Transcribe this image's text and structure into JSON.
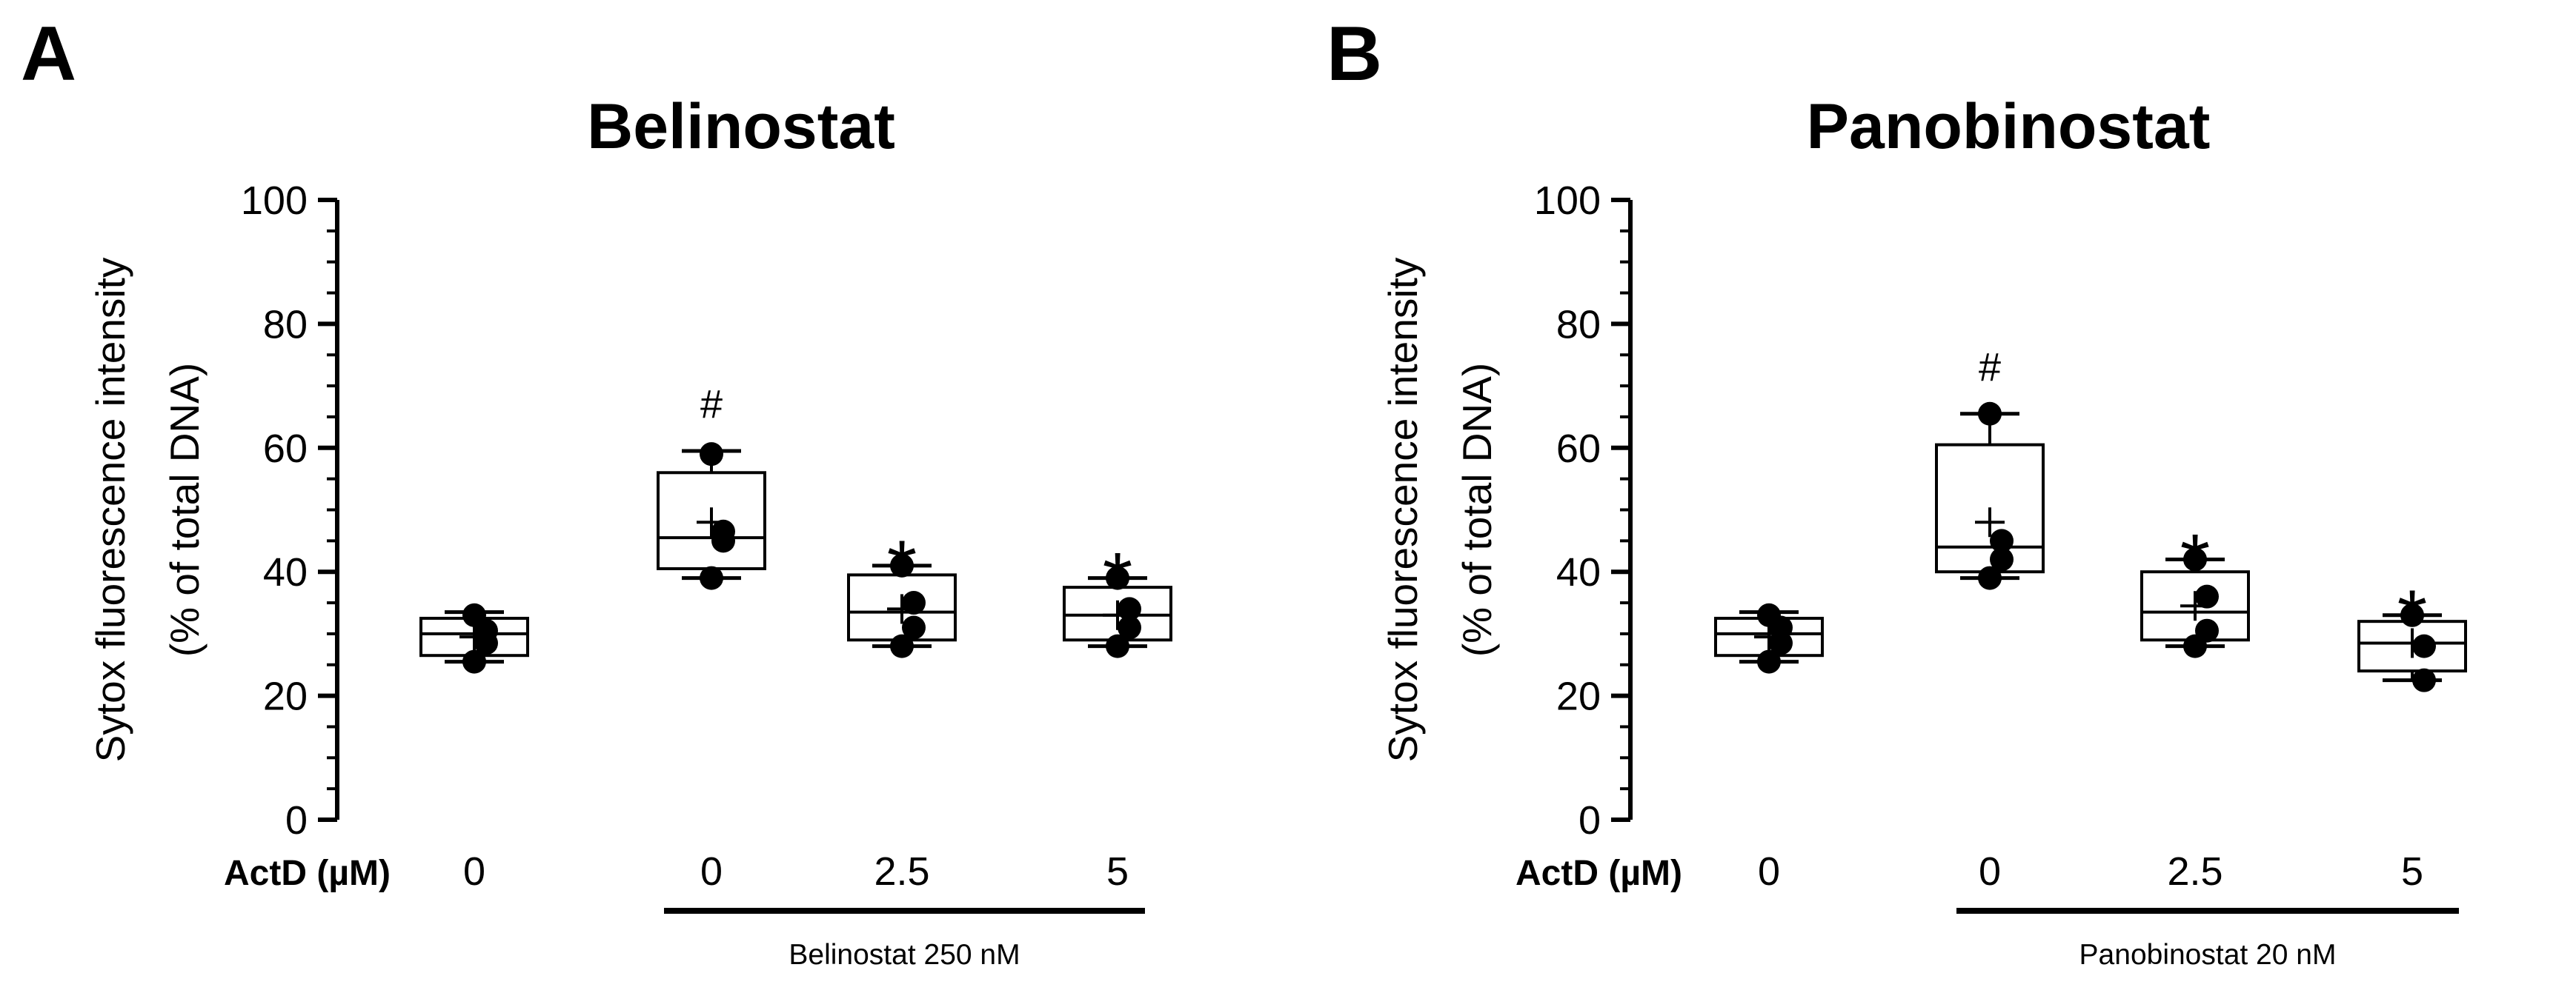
{
  "figure": {
    "row_label": "ActD (µM)",
    "y_label_line1": "Sytox fluorescence intensity",
    "y_label_line2": "(% of total DNA)"
  },
  "chart_data": [
    {
      "panel": "A",
      "type": "box",
      "title": "Belinostat",
      "ylabel": "Sytox fluorescence intensity (% of total DNA)",
      "ylim": [
        0,
        100
      ],
      "yticks": [
        0,
        20,
        40,
        60,
        80,
        100
      ],
      "categories": [
        "0",
        "0",
        "2.5",
        "5"
      ],
      "treatment_label": "Belinostat 250 nM",
      "treatment_groups": [
        1,
        2,
        3
      ],
      "groups": [
        {
          "actd": "0",
          "whisker_low": 25.5,
          "q1": 26.5,
          "median": 30.0,
          "q3": 32.5,
          "whisker_high": 33.5,
          "mean": 29.5,
          "points": [
            33.0,
            30.5,
            28.5,
            25.5
          ],
          "mark": ""
        },
        {
          "actd": "0",
          "whisker_low": 39.0,
          "q1": 40.5,
          "median": 45.5,
          "q3": 56.0,
          "whisker_high": 59.5,
          "mean": 48.0,
          "points": [
            59.0,
            46.5,
            45.0,
            39.0
          ],
          "mark": "#"
        },
        {
          "actd": "2.5",
          "whisker_low": 28.0,
          "q1": 29.0,
          "median": 33.5,
          "q3": 39.5,
          "whisker_high": 41.0,
          "mean": 34.0,
          "points": [
            41.0,
            35.0,
            31.0,
            28.0
          ],
          "mark": "*"
        },
        {
          "actd": "5",
          "whisker_low": 28.0,
          "q1": 29.0,
          "median": 33.0,
          "q3": 37.5,
          "whisker_high": 39.0,
          "mean": 33.0,
          "points": [
            39.0,
            34.0,
            31.0,
            28.0
          ],
          "mark": "*"
        }
      ]
    },
    {
      "panel": "B",
      "type": "box",
      "title": "Panobinostat",
      "ylabel": "Sytox fluorescence intensity (% of total DNA)",
      "ylim": [
        0,
        100
      ],
      "yticks": [
        0,
        20,
        40,
        60,
        80,
        100
      ],
      "categories": [
        "0",
        "0",
        "2.5",
        "5"
      ],
      "treatment_label": "Panobinostat 20 nM",
      "treatment_groups": [
        1,
        2,
        3
      ],
      "groups": [
        {
          "actd": "0",
          "whisker_low": 25.5,
          "q1": 26.5,
          "median": 30.0,
          "q3": 32.5,
          "whisker_high": 33.5,
          "mean": 29.5,
          "points": [
            33.0,
            31.0,
            28.5,
            25.5
          ],
          "mark": ""
        },
        {
          "actd": "0",
          "whisker_low": 39.0,
          "q1": 40.0,
          "median": 44.0,
          "q3": 60.5,
          "whisker_high": 65.5,
          "mean": 48.0,
          "points": [
            65.5,
            45.0,
            42.0,
            39.0
          ],
          "mark": "#"
        },
        {
          "actd": "2.5",
          "whisker_low": 28.0,
          "q1": 29.0,
          "median": 33.5,
          "q3": 40.0,
          "whisker_high": 42.0,
          "mean": 34.5,
          "points": [
            42.0,
            36.0,
            30.5,
            28.0
          ],
          "mark": "*"
        },
        {
          "actd": "5",
          "whisker_low": 22.5,
          "q1": 24.0,
          "median": 28.5,
          "q3": 32.0,
          "whisker_high": 33.0,
          "mean": 28.5,
          "points": [
            33.0,
            28.0,
            22.5
          ],
          "mark": "*"
        }
      ]
    }
  ]
}
